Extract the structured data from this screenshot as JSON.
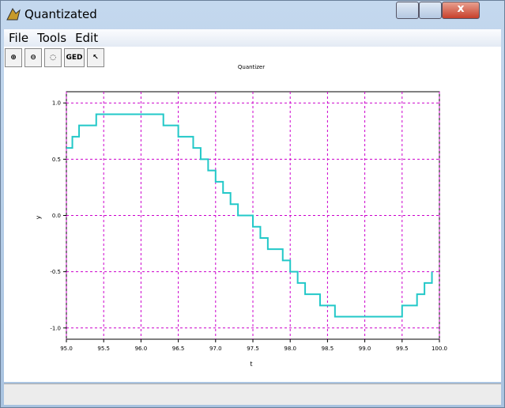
{
  "window": {
    "title": "Quantizated"
  },
  "menu": [
    "File",
    "Tools",
    "Edit"
  ],
  "toolbar": {
    "ged": "GED"
  },
  "chart_data": {
    "type": "step",
    "title": "Quantizer",
    "x_label": "t",
    "y_label": "y",
    "xlim": [
      95,
      100
    ],
    "ylim": [
      -1.1,
      1.1
    ],
    "xticks": [
      {
        "value": 95,
        "label": "95.0"
      },
      {
        "value": 95.5,
        "label": "95.5"
      },
      {
        "value": 96,
        "label": "96.0"
      },
      {
        "value": 96.5,
        "label": "96.5"
      },
      {
        "value": 97,
        "label": "97.0"
      },
      {
        "value": 97.5,
        "label": "97.5"
      },
      {
        "value": 98,
        "label": "98.0"
      },
      {
        "value": 98.5,
        "label": "98.5"
      },
      {
        "value": 99,
        "label": "99.0"
      },
      {
        "value": 99.5,
        "label": "99.5"
      },
      {
        "value": 100,
        "label": "100.0"
      }
    ],
    "yticks": [
      {
        "value": -1,
        "label": "-1.0"
      },
      {
        "value": -0.5,
        "label": "-0.5"
      },
      {
        "value": 0,
        "label": "0.0"
      },
      {
        "value": 0.5,
        "label": "0.5"
      },
      {
        "value": 1,
        "label": "1.0"
      }
    ],
    "grid": true,
    "grid_color": "#cc00cc",
    "color": "#22c8c8",
    "x": [
      95.0,
      95.08,
      95.17,
      95.4,
      96.3,
      96.5,
      96.7,
      96.8,
      96.9,
      97.0,
      97.1,
      97.2,
      97.3,
      97.5,
      97.6,
      97.7,
      97.9,
      98.0,
      98.1,
      98.2,
      98.4,
      98.6,
      99.5,
      99.7,
      99.8,
      99.9
    ],
    "values": [
      0.6,
      0.7,
      0.8,
      0.9,
      0.8,
      0.7,
      0.6,
      0.5,
      0.4,
      0.3,
      0.2,
      0.1,
      0.0,
      -0.1,
      -0.2,
      -0.3,
      -0.4,
      -0.5,
      -0.6,
      -0.7,
      -0.8,
      -0.9,
      -0.8,
      -0.7,
      -0.6,
      -0.5
    ]
  }
}
